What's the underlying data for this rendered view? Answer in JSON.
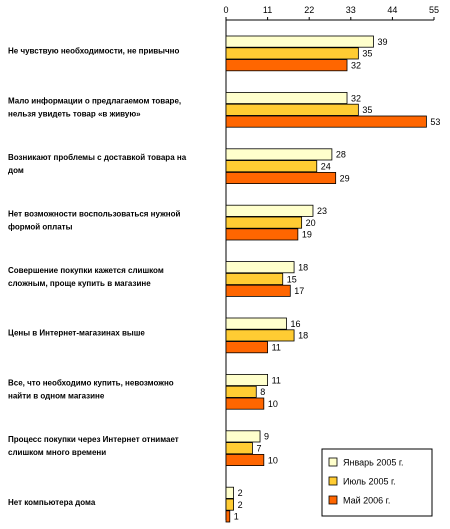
{
  "chart_data": {
    "type": "bar",
    "orientation": "horizontal",
    "title": "",
    "xlabel": "",
    "ylabel": "",
    "x_ticks": [
      0,
      11,
      22,
      33,
      44,
      55
    ],
    "xlim": [
      0,
      55
    ],
    "grid": false,
    "legend_position": "bottom-right",
    "categories": [
      [
        "Не чувствую необходимости, не привычно"
      ],
      [
        "Мало информации о предлагаемом товаре,",
        "нельзя увидеть товар «в живую»"
      ],
      [
        "Возникают проблемы с доставкой товара на",
        "дом"
      ],
      [
        "Нет возможности воспользоваться нужной",
        "формой оплаты"
      ],
      [
        "Совершение покупки кажется слишком",
        "сложным, проще купить в магазине"
      ],
      [
        "Цены в Интернет-магазинах выше"
      ],
      [
        "Все, что необходимо купить, невозможно",
        "найти в одном магазине"
      ],
      [
        "Процесс покупки через Интернет отнимает",
        "слишком много времени"
      ],
      [
        "Нет компьютера дома"
      ]
    ],
    "series": [
      {
        "name": "Январь 2005 г.",
        "color": "#ffffcc",
        "values": [
          39,
          32,
          28,
          23,
          18,
          16,
          11,
          9,
          2
        ]
      },
      {
        "name": "Июль 2005 г.",
        "color": "#ffcc33",
        "values": [
          35,
          35,
          24,
          20,
          15,
          18,
          8,
          7,
          2
        ]
      },
      {
        "name": "Май 2006 г.",
        "color": "#ff6600",
        "values": [
          32,
          53,
          29,
          19,
          17,
          11,
          10,
          10,
          1
        ]
      }
    ]
  }
}
